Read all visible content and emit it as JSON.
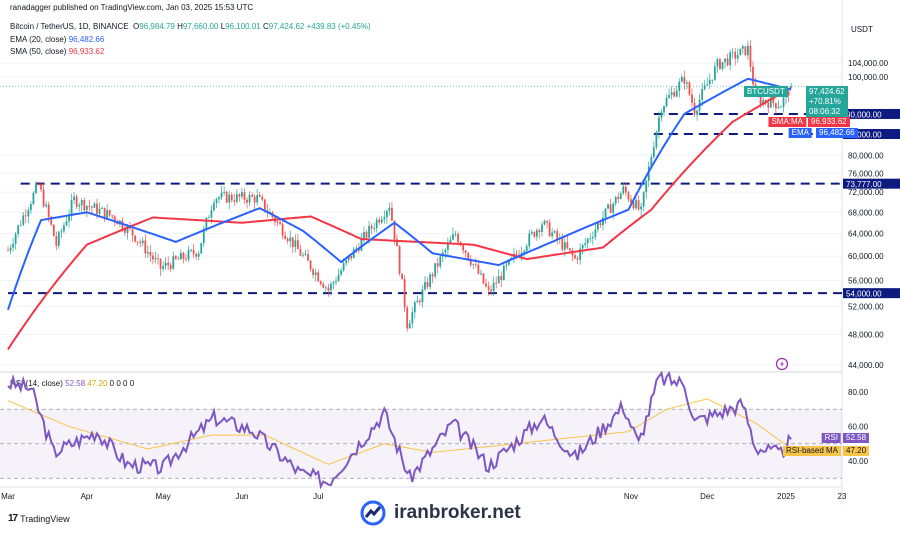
{
  "header": {
    "publisher": "ranadagger published on TradingView.com, Jan 03, 2025 15:53 UTC",
    "symbol_line": "Bitcoin / TetherUS, 1D, BINANCE",
    "ohlc": {
      "o_label": "O",
      "o": "96,984.79",
      "h_label": "H",
      "h": "97,660.00",
      "l_label": "L",
      "l": "96,100.01",
      "c_label": "C",
      "c": "97,424.62",
      "chg": "+439.83 (+0.45%)"
    },
    "ema_line": {
      "label": "EMA (20, close)",
      "value": "96,482.66"
    },
    "sma_line": {
      "label": "SMA (50, close)",
      "value": "96,933.62"
    },
    "rsi_line": {
      "label": "RSI (14, close)",
      "v1": "52.58",
      "v2": "47.20",
      "rest": "0 0 0 0"
    }
  },
  "colors": {
    "up": "#26a69a",
    "down": "#ef5350",
    "ema": "#2962ff",
    "sma": "#f23645",
    "rsi": "#7e57c2",
    "rsi_ma": "#f7c548",
    "level": "#0d1a80",
    "axis_text": "#131722"
  },
  "price_axis": {
    "currency": "USDT",
    "ticks": [
      "104,000.00",
      "100,000.00",
      "80,000.00",
      "76,000.00",
      "72,000.00",
      "68,000.00",
      "64,000.00",
      "60,000.00",
      "56,000.00",
      "52,000.00",
      "48,000.00",
      "44,000.00"
    ],
    "tick_values": [
      104000,
      100000,
      80000,
      76000,
      72000,
      68000,
      64000,
      60000,
      56000,
      52000,
      48000,
      44000
    ]
  },
  "labels": {
    "symbol": "BTCUSDT",
    "price": "97,424.62",
    "pct": "+70.81%",
    "countdown": "08:06:32",
    "sma_tag": "SMA:MA",
    "sma_value": "96,933.62",
    "ema_tag": "EMA",
    "ema_value": "96,482.66",
    "rsi_tag": "RSI",
    "rsi_value": "52.58",
    "rsi_ma_tag": "RSI-based MA",
    "rsi_ma_value": "47.20"
  },
  "levels": [
    {
      "value": 90000,
      "label": "90,000.00"
    },
    {
      "value": 85000,
      "label": "85,000.00"
    },
    {
      "value": 73777,
      "label": "73,777.00"
    },
    {
      "value": 54000,
      "label": "54,000.00"
    }
  ],
  "rsi_axis": {
    "ticks": [
      "80.00",
      "60.00",
      "40.00"
    ],
    "tick_values": [
      80,
      60,
      40
    ],
    "band": [
      70,
      30
    ]
  },
  "time_axis": [
    "Mar",
    "Apr",
    "May",
    "Jun",
    "Jul",
    "Nov",
    "Dec",
    "2025",
    "23"
  ],
  "footer": {
    "brand": "TradingView"
  },
  "watermark": {
    "text": "iranbroker.net"
  },
  "chart_data": {
    "type": "candlestick",
    "ylim": [
      44000,
      110000
    ],
    "ohlc_anchors": [
      {
        "date": "2024-03-01",
        "price": 61000
      },
      {
        "date": "2024-03-13",
        "price": 73500
      },
      {
        "date": "2024-03-20",
        "price": 62000
      },
      {
        "date": "2024-03-27",
        "price": 70500
      },
      {
        "date": "2024-04-12",
        "price": 67000
      },
      {
        "date": "2024-04-20",
        "price": 63500
      },
      {
        "date": "2024-04-30",
        "price": 58000
      },
      {
        "date": "2024-05-15",
        "price": 61000
      },
      {
        "date": "2024-05-21",
        "price": 71000
      },
      {
        "date": "2024-06-07",
        "price": 70800
      },
      {
        "date": "2024-06-24",
        "price": 60500
      },
      {
        "date": "2024-07-05",
        "price": 54500
      },
      {
        "date": "2024-07-29",
        "price": 69500
      },
      {
        "date": "2024-08-05",
        "price": 49500
      },
      {
        "date": "2024-08-24",
        "price": 64000
      },
      {
        "date": "2024-09-06",
        "price": 54000
      },
      {
        "date": "2024-09-27",
        "price": 66000
      },
      {
        "date": "2024-10-10",
        "price": 59500
      },
      {
        "date": "2024-10-29",
        "price": 72500
      },
      {
        "date": "2024-11-05",
        "price": 68000
      },
      {
        "date": "2024-11-13",
        "price": 92000
      },
      {
        "date": "2024-11-22",
        "price": 99500
      },
      {
        "date": "2024-11-26",
        "price": 91000
      },
      {
        "date": "2024-12-05",
        "price": 103500
      },
      {
        "date": "2024-12-17",
        "price": 108300
      },
      {
        "date": "2024-12-20",
        "price": 94000
      },
      {
        "date": "2024-12-30",
        "price": 92500
      },
      {
        "date": "2025-01-03",
        "price": 97424
      }
    ],
    "ema20_anchors": [
      {
        "date": "2024-03-01",
        "value": 51500
      },
      {
        "date": "2024-03-14",
        "value": 66500
      },
      {
        "date": "2024-04-01",
        "value": 68000
      },
      {
        "date": "2024-04-20",
        "value": 65000
      },
      {
        "date": "2024-05-06",
        "value": 62500
      },
      {
        "date": "2024-06-08",
        "value": 68800
      },
      {
        "date": "2024-06-25",
        "value": 64500
      },
      {
        "date": "2024-07-10",
        "value": 59000
      },
      {
        "date": "2024-07-31",
        "value": 66000
      },
      {
        "date": "2024-08-15",
        "value": 60500
      },
      {
        "date": "2024-09-10",
        "value": 58500
      },
      {
        "date": "2024-10-01",
        "value": 62500
      },
      {
        "date": "2024-10-31",
        "value": 68500
      },
      {
        "date": "2024-11-22",
        "value": 90000
      },
      {
        "date": "2024-12-17",
        "value": 99500
      },
      {
        "date": "2025-01-03",
        "value": 96482
      }
    ],
    "sma50_anchors": [
      {
        "date": "2024-03-01",
        "value": 46000
      },
      {
        "date": "2024-04-01",
        "value": 62000
      },
      {
        "date": "2024-04-27",
        "value": 67000
      },
      {
        "date": "2024-06-01",
        "value": 66000
      },
      {
        "date": "2024-06-28",
        "value": 67200
      },
      {
        "date": "2024-07-18",
        "value": 63000
      },
      {
        "date": "2024-08-31",
        "value": 62000
      },
      {
        "date": "2024-09-21",
        "value": 59500
      },
      {
        "date": "2024-10-21",
        "value": 61500
      },
      {
        "date": "2024-11-09",
        "value": 68500
      },
      {
        "date": "2024-12-11",
        "value": 88000
      },
      {
        "date": "2025-01-03",
        "value": 96933
      }
    ],
    "rsi_anchors": [
      {
        "date": "2024-03-01",
        "value": 85
      },
      {
        "date": "2024-03-10",
        "value": 82
      },
      {
        "date": "2024-03-19",
        "value": 45
      },
      {
        "date": "2024-04-05",
        "value": 57
      },
      {
        "date": "2024-04-17",
        "value": 38
      },
      {
        "date": "2024-05-01",
        "value": 36
      },
      {
        "date": "2024-05-08",
        "value": 47
      },
      {
        "date": "2024-05-21",
        "value": 65
      },
      {
        "date": "2024-06-05",
        "value": 58
      },
      {
        "date": "2024-06-24",
        "value": 33
      },
      {
        "date": "2024-07-05",
        "value": 28
      },
      {
        "date": "2024-07-27",
        "value": 68
      },
      {
        "date": "2024-08-06",
        "value": 30
      },
      {
        "date": "2024-08-23",
        "value": 62
      },
      {
        "date": "2024-09-06",
        "value": 37
      },
      {
        "date": "2024-09-27",
        "value": 65
      },
      {
        "date": "2024-10-10",
        "value": 42
      },
      {
        "date": "2024-10-29",
        "value": 72
      },
      {
        "date": "2024-11-04",
        "value": 50
      },
      {
        "date": "2024-11-12",
        "value": 88
      },
      {
        "date": "2024-11-22",
        "value": 85
      },
      {
        "date": "2024-11-26",
        "value": 63
      },
      {
        "date": "2024-12-06",
        "value": 68
      },
      {
        "date": "2024-12-15",
        "value": 73
      },
      {
        "date": "2024-12-20",
        "value": 48
      },
      {
        "date": "2024-12-30",
        "value": 44
      },
      {
        "date": "2025-01-03",
        "value": 52.58
      }
    ],
    "rsi_ma_anchors": [
      {
        "date": "2024-03-01",
        "value": 75
      },
      {
        "date": "2024-03-25",
        "value": 60
      },
      {
        "date": "2024-04-25",
        "value": 47
      },
      {
        "date": "2024-05-20",
        "value": 55
      },
      {
        "date": "2024-06-10",
        "value": 55
      },
      {
        "date": "2024-07-05",
        "value": 38
      },
      {
        "date": "2024-07-27",
        "value": 50
      },
      {
        "date": "2024-08-15",
        "value": 45
      },
      {
        "date": "2024-09-10",
        "value": 49
      },
      {
        "date": "2024-10-05",
        "value": 53
      },
      {
        "date": "2024-10-31",
        "value": 57
      },
      {
        "date": "2024-11-15",
        "value": 70
      },
      {
        "date": "2024-12-01",
        "value": 76
      },
      {
        "date": "2024-12-20",
        "value": 62
      },
      {
        "date": "2025-01-03",
        "value": 47.2
      }
    ]
  }
}
